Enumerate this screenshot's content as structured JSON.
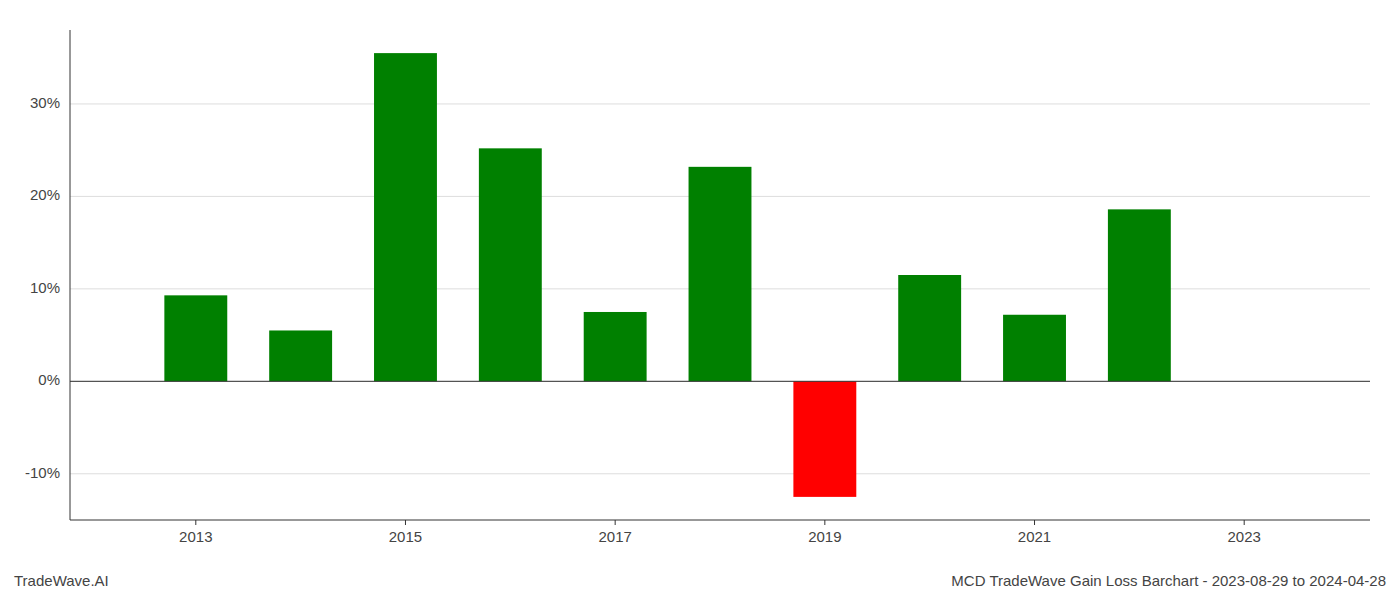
{
  "chart_data": {
    "type": "bar",
    "title": "MCD TradeWave Gain Loss Barchart - 2023-08-29 to 2024-04-28",
    "annotations": [
      "TradeWave.AI"
    ],
    "x": [
      2013,
      2014,
      2015,
      2016,
      2017,
      2018,
      2019,
      2020,
      2021,
      2022
    ],
    "values": [
      9.3,
      5.5,
      35.5,
      25.2,
      7.5,
      23.2,
      -12.5,
      11.5,
      7.2,
      18.6
    ],
    "colors": [
      "#008000",
      "#008000",
      "#008000",
      "#008000",
      "#008000",
      "#008000",
      "#ff0000",
      "#008000",
      "#008000",
      "#008000"
    ],
    "xlim": [
      2011.8,
      2024.2
    ],
    "xticks": [
      2013,
      2015,
      2017,
      2019,
      2021,
      2023
    ],
    "ylim": [
      -15,
      38
    ],
    "yticks": [
      {
        "value": -10,
        "label": "-10%"
      },
      {
        "value": 0,
        "label": "0%"
      },
      {
        "value": 10,
        "label": "10%"
      },
      {
        "value": 20,
        "label": "20%"
      },
      {
        "value": 30,
        "label": "30%"
      }
    ],
    "grid": true
  }
}
